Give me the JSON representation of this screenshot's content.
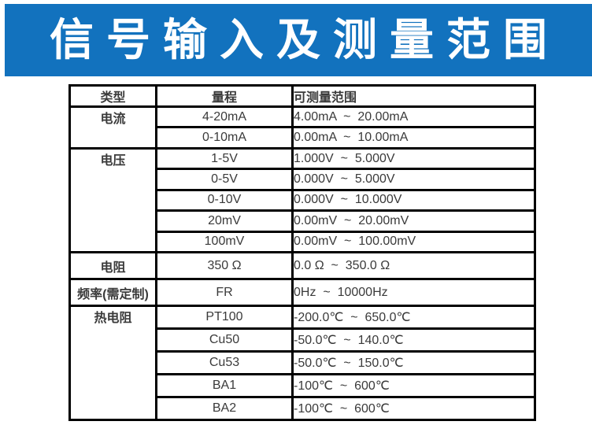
{
  "banner": {
    "title": "信号输入及测量范围",
    "bg_color": "#1272be",
    "text_color": "#ffffff"
  },
  "table": {
    "header": {
      "type": "类型",
      "range": "量程",
      "measurable": "可测量范围"
    },
    "rows": [
      {
        "type": "电流",
        "type_rowspan": 2,
        "range": "4-20mA",
        "value": "4.00mA  ~  20.00mA"
      },
      {
        "range": "0-10mA",
        "value": "0.00mA  ~  10.00mA"
      },
      {
        "type": "电压",
        "type_rowspan": 5,
        "range": "1-5V",
        "value": "1.000V  ~  5.000V"
      },
      {
        "range": "0-5V",
        "value": "0.000V  ~  5.000V"
      },
      {
        "range": "0-10V",
        "value": "0.000V  ~  10.000V"
      },
      {
        "range": "20mV",
        "value": "0.00mV  ~  20.00mV"
      },
      {
        "range": "100mV",
        "value": "0.00mV  ~  100.00mV"
      },
      {
        "type": "电阻",
        "type_rowspan": 1,
        "range": "350 Ω",
        "value": "0.0 Ω  ~  350.0 Ω"
      },
      {
        "type": "频率(需定制)",
        "type_rowspan": 1,
        "range": "FR",
        "value": "0Hz  ~  10000Hz"
      },
      {
        "type": "热电阻",
        "type_rowspan": 5,
        "range": "PT100",
        "value": "-200.0℃  ~  650.0℃"
      },
      {
        "range": "Cu50",
        "value": "-50.0℃  ~  140.0℃"
      },
      {
        "range": "Cu53",
        "value": "-50.0℃  ~  150.0℃"
      },
      {
        "range": "BA1",
        "value": "-100℃  ~  600℃"
      },
      {
        "range": "BA2",
        "value": "-100℃  ~  600℃"
      }
    ]
  }
}
